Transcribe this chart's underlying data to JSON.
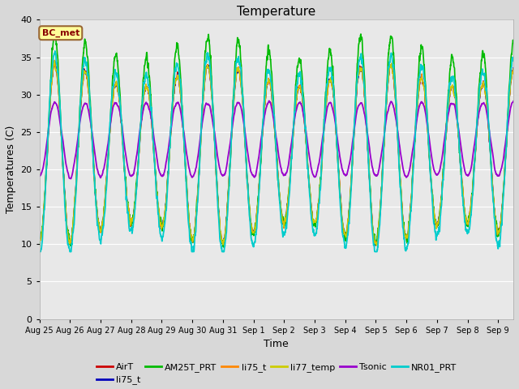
{
  "title": "Temperature",
  "xlabel": "Time",
  "ylabel": "Temperatures (C)",
  "ylim": [
    0,
    40
  ],
  "yticks": [
    0,
    5,
    10,
    15,
    20,
    25,
    30,
    35,
    40
  ],
  "fig_bg_color": "#d8d8d8",
  "plot_bg_color": "#e8e8e8",
  "annotation_text": "BC_met",
  "annotation_bg": "#ffff99",
  "annotation_border": "#996633",
  "annotation_text_color": "#880000",
  "series": [
    {
      "label": "AirT",
      "color": "#cc0000",
      "lw": 1.0
    },
    {
      "label": "li75_t",
      "color": "#0000bb",
      "lw": 1.0
    },
    {
      "label": "AM25T_PRT",
      "color": "#00bb00",
      "lw": 1.2
    },
    {
      "label": "li75_t",
      "color": "#ff8800",
      "lw": 1.0
    },
    {
      "label": "li77_temp",
      "color": "#cccc00",
      "lw": 1.0
    },
    {
      "label": "Tsonic",
      "color": "#9900cc",
      "lw": 1.3
    },
    {
      "label": "NR01_PRT",
      "color": "#00cccc",
      "lw": 1.3
    }
  ],
  "x_tick_labels": [
    "Aug 25",
    "Aug 26",
    "Aug 27",
    "Aug 28",
    "Aug 29",
    "Aug 30",
    "Aug 31",
    "Sep 1",
    "Sep 2",
    "Sep 3",
    "Sep 4",
    "Sep 5",
    "Sep 6",
    "Sep 7",
    "Sep 8",
    "Sep 9"
  ],
  "n_days": 15.5,
  "pts_per_day": 144
}
